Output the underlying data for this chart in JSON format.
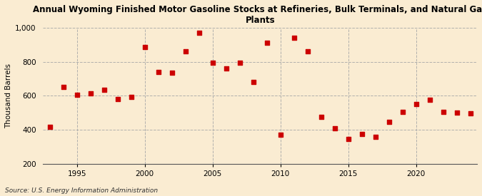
{
  "title": "Annual Wyoming Finished Motor Gasoline Stocks at Refineries, Bulk Terminals, and Natural Gas\nPlants",
  "ylabel": "Thousand Barrels",
  "source": "Source: U.S. Energy Information Administration",
  "background_color": "#faecd2",
  "plot_bg_color": "#faecd2",
  "marker_color": "#cc0000",
  "marker": "s",
  "marker_size": 4,
  "ylim": [
    200,
    1000
  ],
  "yticks": [
    200,
    400,
    600,
    800,
    1000
  ],
  "ytick_labels": [
    "200",
    "400",
    "600",
    "800",
    "1,000"
  ],
  "xlim": [
    1992.5,
    2024.5
  ],
  "xticks": [
    1995,
    2000,
    2005,
    2010,
    2015,
    2020
  ],
  "years": [
    1993,
    1994,
    1995,
    1996,
    1997,
    1998,
    1999,
    2000,
    2001,
    2002,
    2003,
    2004,
    2005,
    2006,
    2007,
    2008,
    2009,
    2010,
    2011,
    2012,
    2013,
    2014,
    2015,
    2016,
    2017,
    2018,
    2019,
    2020,
    2021,
    2022,
    2023,
    2024
  ],
  "values": [
    415,
    650,
    605,
    615,
    635,
    580,
    595,
    885,
    740,
    735,
    860,
    970,
    795,
    760,
    795,
    680,
    910,
    370,
    940,
    860,
    475,
    410,
    345,
    375,
    360,
    445,
    505,
    550,
    575,
    505,
    500,
    495
  ]
}
